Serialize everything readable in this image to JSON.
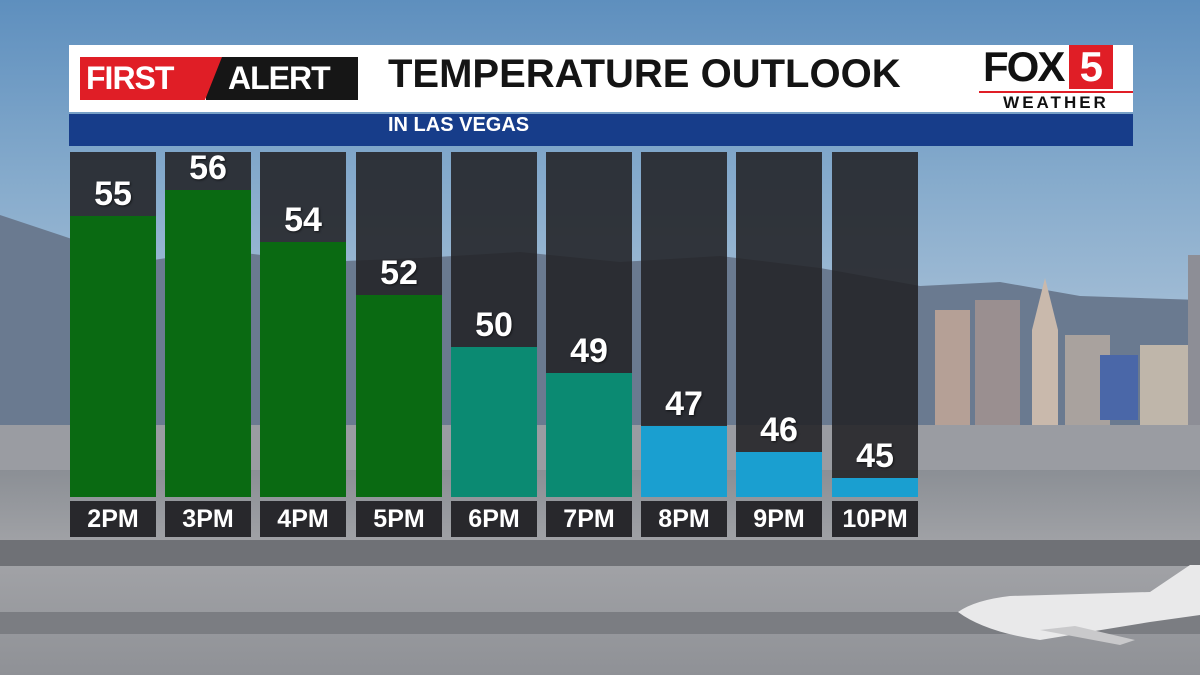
{
  "header": {
    "badge_first": "FIRST",
    "badge_alert": "ALERT",
    "title": "TEMPERATURE OUTLOOK",
    "subtitle": "IN LAS VEGAS",
    "logo_fox": "FOX",
    "logo_number": "5",
    "logo_sub": "WEATHER"
  },
  "colors": {
    "brand_red": "#e01e26",
    "header_blue": "#173d8a",
    "bar_green": "#0a6a12",
    "bar_teal": "#0b8a72",
    "bar_blue": "#1a9fd0"
  },
  "chart_data": {
    "type": "bar",
    "title": "TEMPERATURE OUTLOOK",
    "subtitle": "IN LAS VEGAS",
    "categories": [
      "2PM",
      "3PM",
      "4PM",
      "5PM",
      "6PM",
      "7PM",
      "8PM",
      "9PM",
      "10PM"
    ],
    "values": [
      55,
      56,
      54,
      52,
      50,
      49,
      47,
      46,
      45
    ],
    "bar_colors": [
      "#0a6a12",
      "#0a6a12",
      "#0a6a12",
      "#0a6a12",
      "#0b8a72",
      "#0b8a72",
      "#1a9fd0",
      "#1a9fd0",
      "#1a9fd0"
    ],
    "data_labels": true,
    "grid": false,
    "legend": "none"
  }
}
